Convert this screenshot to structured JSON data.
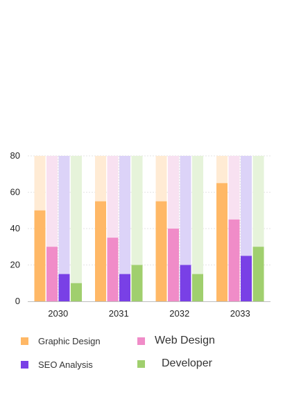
{
  "chart_data": {
    "type": "bar",
    "categories": [
      "2030",
      "2031",
      "2032",
      "2033"
    ],
    "ylim": [
      0,
      80
    ],
    "yticks": [
      0,
      20,
      40,
      60,
      80
    ],
    "grid": true,
    "legend_position": "bottom",
    "background_bar_value": 80,
    "series": [
      {
        "name": "Graphic Design",
        "color": "#FFB866",
        "bg_color": "#FFEBD4",
        "values": [
          50,
          55,
          55,
          65
        ]
      },
      {
        "name": "Web Design",
        "color": "#F08CC8",
        "bg_color": "#F8E1F1",
        "values": [
          30,
          35,
          40,
          45
        ]
      },
      {
        "name": "SEO Analysis",
        "color": "#7940E6",
        "bg_color": "#DCD3F8",
        "values": [
          15,
          15,
          20,
          25
        ]
      },
      {
        "name": "Developer",
        "color": "#A0CF6E",
        "bg_color": "#E6F3DA",
        "values": [
          10,
          20,
          15,
          30
        ]
      }
    ]
  }
}
